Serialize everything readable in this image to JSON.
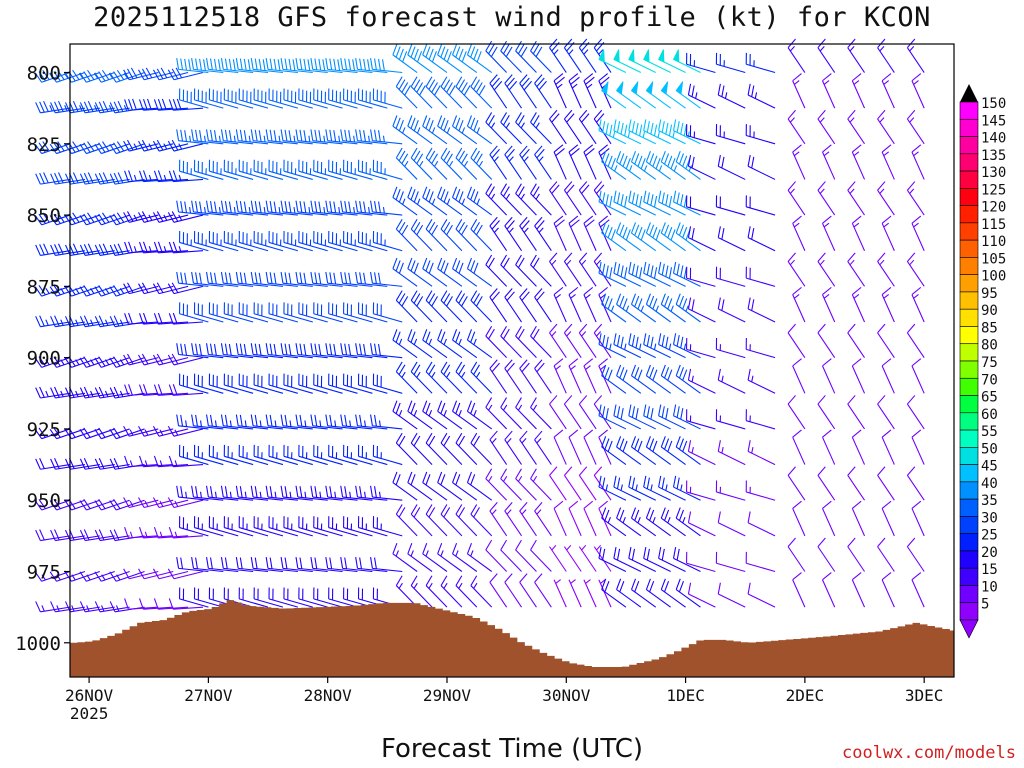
{
  "title": "2025112518 GFS forecast wind profile (kt) for KCON",
  "xaxis_label": "Forecast Time (UTC)",
  "credit": "coolwx.com/models",
  "chart_data": {
    "type": "wind_barb_profile",
    "title": "2025112518 GFS forecast wind profile (kt) for KCON",
    "xlabel": "Forecast Time (UTC)",
    "ylabel": "",
    "y_axis": {
      "reversed": true,
      "ylim": [
        1012,
        790
      ],
      "ticks": [
        800,
        825,
        850,
        875,
        900,
        925,
        950,
        975,
        1000
      ]
    },
    "x_axis": {
      "xlim": [
        -0.16,
        7.25
      ],
      "ticks": [
        {
          "day": 0,
          "label": "26NOV",
          "sublabel": "2025"
        },
        {
          "day": 1,
          "label": "27NOV"
        },
        {
          "day": 2,
          "label": "28NOV"
        },
        {
          "day": 3,
          "label": "29NOV"
        },
        {
          "day": 4,
          "label": "30NOV"
        },
        {
          "day": 5,
          "label": "1DEC"
        },
        {
          "day": 6,
          "label": "2DEC"
        },
        {
          "day": 7,
          "label": "3DEC"
        }
      ]
    },
    "levels_hPa": [
      800,
      812.5,
      825,
      837.5,
      850,
      862.5,
      875,
      887.5,
      900,
      912.5,
      925,
      937.5,
      950,
      962.5,
      975,
      987.5
    ],
    "profile_segments": [
      {
        "start_day": -0.16,
        "end_day": 0.58,
        "step_days": 0.125,
        "top_speed_kt": 35,
        "bottom_speed_kt": 15,
        "from_direction_deg": 255
      },
      {
        "start_day": 0.58,
        "end_day": 1.0,
        "step_days": 0.125,
        "top_speed_kt": 30,
        "bottom_speed_kt": 10,
        "from_direction_deg": 260
      },
      {
        "start_day": 1.0,
        "end_day": 2.0,
        "step_days": 0.125,
        "top_speed_kt": 40,
        "bottom_speed_kt": 20,
        "from_direction_deg": 280
      },
      {
        "start_day": 2.0,
        "end_day": 2.75,
        "step_days": 0.125,
        "top_speed_kt": 40,
        "bottom_speed_kt": 20,
        "from_direction_deg": 280
      },
      {
        "start_day": 2.75,
        "end_day": 3.5,
        "step_days": 0.125,
        "top_speed_kt": 40,
        "bottom_speed_kt": 15,
        "from_direction_deg": 310
      },
      {
        "start_day": 3.5,
        "end_day": 4.0,
        "step_days": 0.125,
        "top_speed_kt": 30,
        "bottom_speed_kt": 10,
        "from_direction_deg": 320
      },
      {
        "start_day": 4.0,
        "end_day": 4.5,
        "step_days": 0.125,
        "top_speed_kt": 25,
        "bottom_speed_kt": 5,
        "from_direction_deg": 330
      },
      {
        "start_day": 4.5,
        "end_day": 5.25,
        "step_days": 0.125,
        "top_speed_kt": 50,
        "bottom_speed_kt": 20,
        "from_direction_deg": 300
      },
      {
        "start_day": 5.25,
        "end_day": 6.0,
        "step_days": 0.25,
        "top_speed_kt": 25,
        "bottom_speed_kt": 10,
        "from_direction_deg": 290
      },
      {
        "start_day": 6.0,
        "end_day": 7.25,
        "step_days": 0.25,
        "top_speed_kt": 15,
        "bottom_speed_kt": 10,
        "from_direction_deg": 330
      }
    ],
    "terrain": {
      "color": "#a0522d",
      "surface_pressure_hPa": [
        [
          -0.16,
          1000
        ],
        [
          0.0,
          999.5
        ],
        [
          0.2,
          997
        ],
        [
          0.4,
          993
        ],
        [
          0.6,
          992
        ],
        [
          0.8,
          989
        ],
        [
          1.0,
          988
        ],
        [
          1.15,
          985
        ],
        [
          1.3,
          987
        ],
        [
          1.6,
          988
        ],
        [
          1.9,
          987.5
        ],
        [
          2.2,
          987
        ],
        [
          2.45,
          986
        ],
        [
          2.7,
          986
        ],
        [
          2.85,
          987.5
        ],
        [
          3.0,
          989
        ],
        [
          3.2,
          991
        ],
        [
          3.4,
          995
        ],
        [
          3.6,
          1000
        ],
        [
          3.8,
          1004
        ],
        [
          4.0,
          1007
        ],
        [
          4.2,
          1008.5
        ],
        [
          4.45,
          1008.5
        ],
        [
          4.6,
          1007
        ],
        [
          4.75,
          1005.5
        ],
        [
          4.9,
          1003
        ],
        [
          5.1,
          999
        ],
        [
          5.3,
          999
        ],
        [
          5.5,
          1000
        ],
        [
          5.8,
          999
        ],
        [
          6.1,
          998
        ],
        [
          6.35,
          997
        ],
        [
          6.6,
          996
        ],
        [
          6.9,
          993
        ],
        [
          7.25,
          996
        ]
      ]
    },
    "colorbar": {
      "unit": "kt",
      "labels": [
        150,
        145,
        140,
        135,
        130,
        125,
        120,
        115,
        110,
        105,
        100,
        95,
        90,
        85,
        80,
        75,
        70,
        65,
        60,
        55,
        50,
        45,
        40,
        35,
        30,
        25,
        20,
        15,
        10,
        5
      ],
      "colors": [
        "#ff00ff",
        "#ff00d0",
        "#ff00a0",
        "#ff0070",
        "#ff0040",
        "#ff0010",
        "#ff2000",
        "#ff4000",
        "#ff6000",
        "#ff8000",
        "#ffa000",
        "#ffc000",
        "#ffe000",
        "#ffff00",
        "#c0ff00",
        "#80ff00",
        "#40ff00",
        "#00ff40",
        "#00ff80",
        "#00ffc0",
        "#00e0e0",
        "#00c0ff",
        "#0090ff",
        "#0060ff",
        "#0040ff",
        "#0020ff",
        "#2000ff",
        "#4000ff",
        "#7000ff",
        "#9000ff"
      ]
    }
  }
}
